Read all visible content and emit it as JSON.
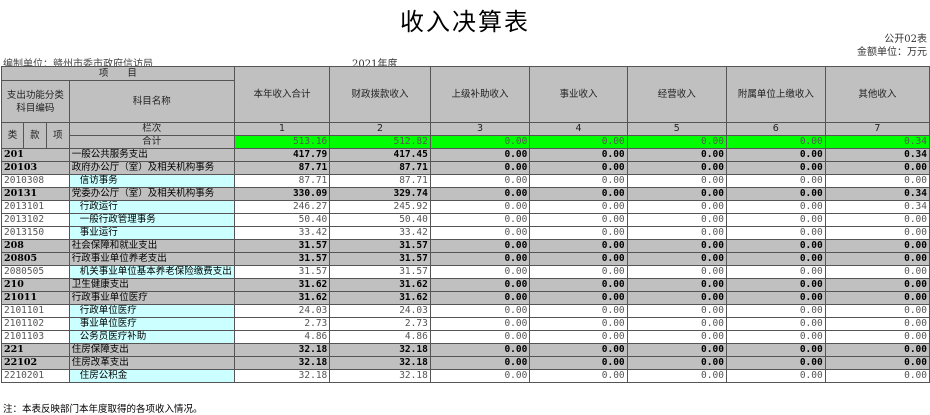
{
  "title": "收入决算表",
  "form_no": "公开02表",
  "unit_label": "金额单位：万元",
  "org": "编制单位：赣州市委市政府信访局",
  "year": "2021年度",
  "header": {
    "item": "项　　目",
    "code": "支出功能分类科目编码",
    "name": "科目名称",
    "lei": "类",
    "kuan": "款",
    "xiang": "项",
    "lanci": "栏次",
    "total": "合计",
    "columns": [
      "本年收入合计",
      "财政拨款收入",
      "上级补助收入",
      "事业收入",
      "经营收入",
      "附属单位上缴收入",
      "其他收入"
    ],
    "column_numbers": [
      "1",
      "2",
      "3",
      "4",
      "5",
      "6",
      "7"
    ]
  },
  "total_values": [
    "513.16",
    "512.82",
    "0.00",
    "0.00",
    "0.00",
    "0.00",
    "0.34"
  ],
  "rows": [
    {
      "code": "201",
      "name": "一般公共服务支出",
      "level": "group",
      "values": [
        "417.79",
        "417.45",
        "0.00",
        "0.00",
        "0.00",
        "0.00",
        "0.34"
      ]
    },
    {
      "code": "20103",
      "name": "政府办公厅（室）及相关机构事务",
      "level": "group",
      "values": [
        "87.71",
        "87.71",
        "0.00",
        "0.00",
        "0.00",
        "0.00",
        "0.00"
      ]
    },
    {
      "code": "2010308",
      "name": "信访事务",
      "level": "leaf",
      "values": [
        "87.71",
        "87.71",
        "0.00",
        "0.00",
        "0.00",
        "0.00",
        "0.00"
      ]
    },
    {
      "code": "20131",
      "name": "党委办公厅（室）及相关机构事务",
      "level": "group",
      "values": [
        "330.09",
        "329.74",
        "0.00",
        "0.00",
        "0.00",
        "0.00",
        "0.34"
      ]
    },
    {
      "code": "2013101",
      "name": "行政运行",
      "level": "leaf",
      "values": [
        "246.27",
        "245.92",
        "0.00",
        "0.00",
        "0.00",
        "0.00",
        "0.34"
      ]
    },
    {
      "code": "2013102",
      "name": "一般行政管理事务",
      "level": "leaf",
      "values": [
        "50.40",
        "50.40",
        "0.00",
        "0.00",
        "0.00",
        "0.00",
        "0.00"
      ]
    },
    {
      "code": "2013150",
      "name": "事业运行",
      "level": "leaf",
      "values": [
        "33.42",
        "33.42",
        "0.00",
        "0.00",
        "0.00",
        "0.00",
        "0.00"
      ]
    },
    {
      "code": "208",
      "name": "社会保障和就业支出",
      "level": "group",
      "values": [
        "31.57",
        "31.57",
        "0.00",
        "0.00",
        "0.00",
        "0.00",
        "0.00"
      ]
    },
    {
      "code": "20805",
      "name": "行政事业单位养老支出",
      "level": "group",
      "values": [
        "31.57",
        "31.57",
        "0.00",
        "0.00",
        "0.00",
        "0.00",
        "0.00"
      ]
    },
    {
      "code": "2080505",
      "name": "机关事业单位基本养老保险缴费支出",
      "level": "leaf",
      "values": [
        "31.57",
        "31.57",
        "0.00",
        "0.00",
        "0.00",
        "0.00",
        "0.00"
      ]
    },
    {
      "code": "210",
      "name": "卫生健康支出",
      "level": "group",
      "values": [
        "31.62",
        "31.62",
        "0.00",
        "0.00",
        "0.00",
        "0.00",
        "0.00"
      ]
    },
    {
      "code": "21011",
      "name": "行政事业单位医疗",
      "level": "group",
      "values": [
        "31.62",
        "31.62",
        "0.00",
        "0.00",
        "0.00",
        "0.00",
        "0.00"
      ]
    },
    {
      "code": "2101101",
      "name": "行政单位医疗",
      "level": "leaf",
      "values": [
        "24.03",
        "24.03",
        "0.00",
        "0.00",
        "0.00",
        "0.00",
        "0.00"
      ]
    },
    {
      "code": "2101102",
      "name": "事业单位医疗",
      "level": "leaf",
      "values": [
        "2.73",
        "2.73",
        "0.00",
        "0.00",
        "0.00",
        "0.00",
        "0.00"
      ]
    },
    {
      "code": "2101103",
      "name": "公务员医疗补助",
      "level": "leaf",
      "values": [
        "4.86",
        "4.86",
        "0.00",
        "0.00",
        "0.00",
        "0.00",
        "0.00"
      ]
    },
    {
      "code": "221",
      "name": "住房保障支出",
      "level": "group",
      "values": [
        "32.18",
        "32.18",
        "0.00",
        "0.00",
        "0.00",
        "0.00",
        "0.00"
      ]
    },
    {
      "code": "22102",
      "name": "住房改革支出",
      "level": "group",
      "values": [
        "32.18",
        "32.18",
        "0.00",
        "0.00",
        "0.00",
        "0.00",
        "0.00"
      ]
    },
    {
      "code": "2210201",
      "name": "住房公积金",
      "level": "leaf",
      "values": [
        "32.18",
        "32.18",
        "0.00",
        "0.00",
        "0.00",
        "0.00",
        "0.00"
      ]
    }
  ],
  "note": "注：本表反映部门本年度取得的各项收入情况。",
  "colors": {
    "header_gray": "#c0c0c0",
    "total_green": "#00ff00",
    "leaf_cyan": "#ccffff"
  }
}
